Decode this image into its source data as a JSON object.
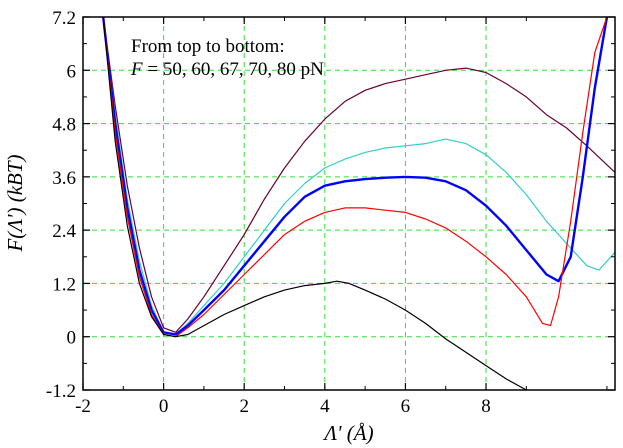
{
  "chart_data": {
    "type": "line",
    "xlabel": "Λ' (Å)",
    "ylabel": "F(Λ') (kBT)",
    "xlim": [
      -2,
      11.2
    ],
    "ylim": [
      -1.2,
      7.2
    ],
    "x_ticks": [
      "-2",
      "0",
      "2",
      "4",
      "6",
      "8"
    ],
    "y_ticks": [
      "-1.2",
      "0",
      "1.2",
      "2.4",
      "3.6",
      "4.8",
      "6",
      "7.2"
    ],
    "grid": true,
    "annotation": {
      "line1": "From top to bottom:",
      "line2_italic": "F",
      "line2_rest": " = 50, 60, 67, 70, 80 pN"
    },
    "series": [
      {
        "color": "#660033",
        "x": [
          -1.5,
          -1.2,
          -0.9,
          -0.6,
          -0.3,
          0,
          0.3,
          0.6,
          1,
          1.5,
          2,
          2.5,
          3,
          3.5,
          4,
          4.5,
          5,
          5.5,
          6,
          6.5,
          7,
          7.5,
          8,
          8.5,
          9,
          9.5,
          10,
          10.5,
          11.2
        ],
        "y": [
          7.2,
          5.2,
          3.4,
          2.0,
          0.9,
          0.2,
          0.1,
          0.4,
          0.9,
          1.6,
          2.3,
          3.1,
          3.8,
          4.4,
          4.9,
          5.3,
          5.55,
          5.7,
          5.8,
          5.9,
          6.0,
          6.05,
          5.95,
          5.7,
          5.4,
          5.0,
          4.7,
          4.3,
          3.7
        ]
      },
      {
        "color": "#33cccc",
        "x": [
          -1.5,
          -1.2,
          -0.9,
          -0.6,
          -0.3,
          0,
          0.3,
          0.6,
          1,
          1.5,
          2,
          2.5,
          3,
          3.5,
          4,
          4.5,
          5,
          5.5,
          6,
          6.5,
          7,
          7.5,
          8,
          8.5,
          9,
          9.5,
          10,
          10.5,
          10.8,
          11.2
        ],
        "y": [
          7.2,
          5.0,
          3.1,
          1.7,
          0.7,
          0.1,
          0.05,
          0.3,
          0.7,
          1.2,
          1.8,
          2.4,
          3.0,
          3.45,
          3.8,
          4.0,
          4.15,
          4.25,
          4.3,
          4.35,
          4.45,
          4.35,
          4.1,
          3.7,
          3.2,
          2.6,
          2.1,
          1.6,
          1.5,
          1.9
        ]
      },
      {
        "color": "#0000ff",
        "x": [
          -1.5,
          -1.2,
          -0.9,
          -0.6,
          -0.3,
          0,
          0.3,
          0.6,
          1,
          1.5,
          2,
          2.5,
          3,
          3.5,
          4,
          4.5,
          5,
          5.5,
          6,
          6.5,
          7,
          7.5,
          8,
          8.5,
          9,
          9.5,
          9.8,
          10.1,
          10.4,
          10.7,
          11.0
        ],
        "y": [
          7.2,
          4.8,
          2.9,
          1.5,
          0.6,
          0.1,
          0.05,
          0.25,
          0.6,
          1.05,
          1.6,
          2.15,
          2.7,
          3.15,
          3.4,
          3.5,
          3.55,
          3.58,
          3.6,
          3.58,
          3.5,
          3.3,
          2.95,
          2.5,
          1.95,
          1.4,
          1.25,
          1.8,
          3.6,
          5.6,
          7.2
        ]
      },
      {
        "color": "#ff0000",
        "x": [
          -1.5,
          -1.2,
          -0.9,
          -0.6,
          -0.3,
          0,
          0.3,
          0.6,
          1,
          1.5,
          2,
          2.5,
          3,
          3.5,
          4,
          4.5,
          5,
          5.5,
          6,
          6.5,
          7,
          7.5,
          8,
          8.5,
          9,
          9.4,
          9.6,
          9.8,
          10.1,
          10.4,
          10.7,
          11.0
        ],
        "y": [
          7.2,
          4.6,
          2.7,
          1.35,
          0.5,
          0.05,
          0.0,
          0.2,
          0.5,
          0.95,
          1.4,
          1.85,
          2.3,
          2.6,
          2.8,
          2.9,
          2.9,
          2.85,
          2.8,
          2.65,
          2.45,
          2.15,
          1.8,
          1.4,
          0.9,
          0.3,
          0.25,
          0.9,
          2.6,
          4.6,
          6.4,
          7.2
        ]
      },
      {
        "color": "#000000",
        "x": [
          -1.5,
          -1.2,
          -0.9,
          -0.6,
          -0.3,
          0,
          0.3,
          0.6,
          1,
          1.5,
          2,
          2.5,
          3,
          3.5,
          4,
          4.3,
          4.6,
          5,
          5.5,
          6,
          6.5,
          7,
          7.5,
          8,
          8.5,
          9,
          9.3
        ],
        "y": [
          7.2,
          4.4,
          2.5,
          1.2,
          0.45,
          0.05,
          0.0,
          0.05,
          0.25,
          0.5,
          0.7,
          0.9,
          1.05,
          1.15,
          1.2,
          1.25,
          1.2,
          1.05,
          0.85,
          0.6,
          0.3,
          -0.05,
          -0.35,
          -0.65,
          -0.95,
          -1.2,
          -1.45
        ]
      }
    ]
  }
}
